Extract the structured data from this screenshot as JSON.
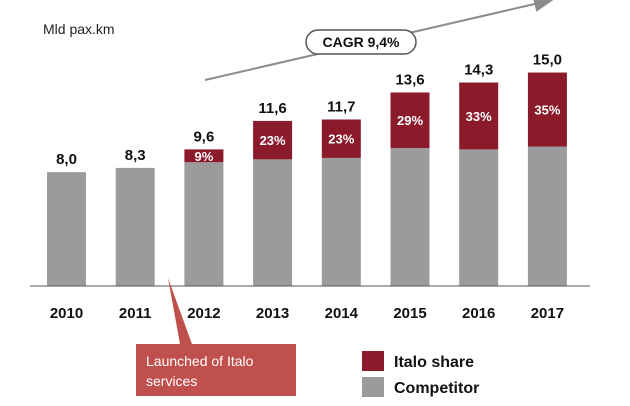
{
  "chart_data": {
    "type": "bar",
    "stacked": true,
    "unit_label": "Mld pax.km",
    "categories": [
      "2010",
      "2011",
      "2012",
      "2013",
      "2014",
      "2015",
      "2016",
      "2017"
    ],
    "totals": [
      8.0,
      8.3,
      9.6,
      11.6,
      11.7,
      13.6,
      14.3,
      15.0
    ],
    "total_labels": [
      "8,0",
      "8,3",
      "9,6",
      "11,6",
      "11,7",
      "13,6",
      "14,3",
      "15,0"
    ],
    "series": [
      {
        "name": "Competitor",
        "color": "#9b9b9b",
        "values": [
          8.0,
          8.3,
          8.7,
          8.9,
          9.0,
          9.7,
          9.6,
          9.8
        ]
      },
      {
        "name": "Italo share",
        "color": "#8b1a2b",
        "values": [
          0,
          0,
          0.9,
          2.7,
          2.7,
          3.9,
          4.7,
          5.2
        ],
        "share_labels": [
          "",
          "",
          "9%",
          "23%",
          "23%",
          "29%",
          "33%",
          "35%"
        ]
      }
    ],
    "ylim": [
      0,
      15.6
    ],
    "grid": false,
    "legend": {
      "position": "bottom-right",
      "order": [
        "Italo share",
        "Competitor"
      ]
    },
    "annotations": {
      "cagr": "CAGR 9,4%",
      "callout": [
        "Launched of Italo",
        "services"
      ],
      "callout_color": "#c0504d"
    }
  }
}
